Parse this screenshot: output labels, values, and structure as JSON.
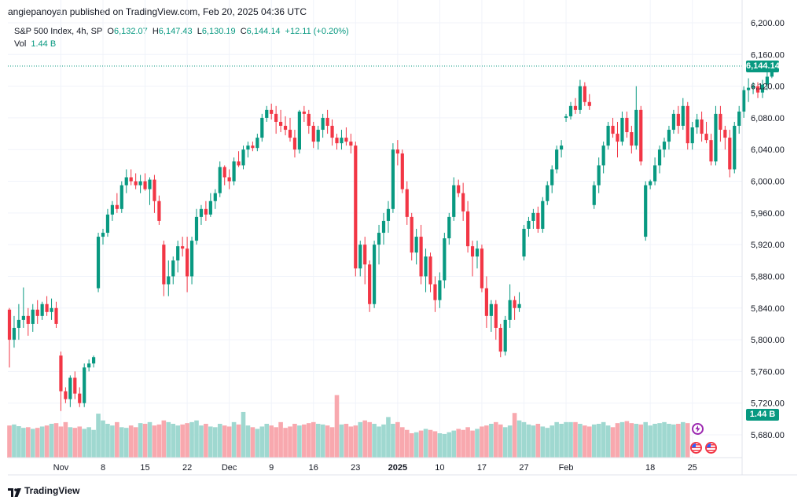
{
  "header": {
    "publish_line": "angiepanoyan published on TradingView.com, Feb 20, 2025 04:36 UTC"
  },
  "legend": {
    "symbol": "S&P 500 Index, 4h, SP",
    "o_label": "O",
    "o_value": "6,132.07",
    "h_label": "H",
    "h_value": "6,147.43",
    "l_label": "L",
    "l_value": "6,130.19",
    "c_label": "C",
    "c_value": "6,144.14",
    "change": "+12.11 (+0.20%)",
    "vol_label": "Vol",
    "vol_value": "1.44 B"
  },
  "price_tag": "6,144.14",
  "volume_tag": "1.44 B",
  "footer": {
    "brand": "TradingView"
  },
  "colors": {
    "up": "#089981",
    "down": "#f23645",
    "up_vol": "#9fd8d0",
    "down_vol": "#f8a8ae"
  },
  "chart_data": {
    "type": "candlestick",
    "title": "S&P 500 Index, 4h",
    "ylim": [
      5640,
      6210
    ],
    "y_ticks": [
      5680,
      5720,
      5760,
      5800,
      5840,
      5880,
      5920,
      5960,
      6000,
      6040,
      6080,
      6120,
      6160,
      6200
    ],
    "y_tick_labels": [
      "5,680.00",
      "5,720.00",
      "5,760.00",
      "5,800.00",
      "5,840.00",
      "5,880.00",
      "5,920.00",
      "5,960.00",
      "6,000.00",
      "6,040.00",
      "6,080.00",
      "6,120.00",
      "6,160.00",
      "6,200.00"
    ],
    "x_ticks": [
      {
        "label": "Nov",
        "i": 11
      },
      {
        "label": "8",
        "i": 20
      },
      {
        "label": "15",
        "i": 29
      },
      {
        "label": "22",
        "i": 38
      },
      {
        "label": "Dec",
        "i": 47
      },
      {
        "label": "9",
        "i": 56
      },
      {
        "label": "16",
        "i": 65
      },
      {
        "label": "23",
        "i": 74
      },
      {
        "label": "2025",
        "i": 83
      },
      {
        "label": "10",
        "i": 92
      },
      {
        "label": "17",
        "i": 101
      },
      {
        "label": "27",
        "i": 110
      },
      {
        "label": "Feb",
        "i": 119
      },
      {
        "label": "18",
        "i": 137
      },
      {
        "label": "25",
        "i": 146
      }
    ],
    "last_price": 6144.14,
    "ohlc": [
      [
        5838,
        5840,
        5765,
        5800
      ],
      [
        5800,
        5830,
        5790,
        5815
      ],
      [
        5815,
        5845,
        5800,
        5825
      ],
      [
        5825,
        5866,
        5815,
        5830
      ],
      [
        5830,
        5840,
        5805,
        5820
      ],
      [
        5820,
        5845,
        5810,
        5838
      ],
      [
        5838,
        5850,
        5820,
        5830
      ],
      [
        5830,
        5848,
        5825,
        5845
      ],
      [
        5845,
        5855,
        5830,
        5835
      ],
      [
        5835,
        5852,
        5825,
        5840
      ],
      [
        5840,
        5848,
        5815,
        5820
      ],
      [
        5780,
        5785,
        5710,
        5735
      ],
      [
        5735,
        5740,
        5720,
        5725
      ],
      [
        5725,
        5755,
        5715,
        5752
      ],
      [
        5752,
        5760,
        5725,
        5732
      ],
      [
        5732,
        5740,
        5715,
        5720
      ],
      [
        5720,
        5770,
        5715,
        5765
      ],
      [
        5765,
        5775,
        5760,
        5770
      ],
      [
        5770,
        5780,
        5765,
        5778
      ],
      [
        5865,
        5935,
        5860,
        5930
      ],
      [
        5930,
        5940,
        5920,
        5935
      ],
      [
        5935,
        5965,
        5930,
        5958
      ],
      [
        5958,
        5975,
        5950,
        5970
      ],
      [
        5970,
        5985,
        5960,
        5965
      ],
      [
        5965,
        6000,
        5960,
        5995
      ],
      [
        5995,
        6015,
        5985,
        6005
      ],
      [
        6005,
        6015,
        5995,
        6000
      ],
      [
        6000,
        6010,
        5990,
        5995
      ],
      [
        5995,
        6008,
        5985,
        6000
      ],
      [
        6000,
        6010,
        5988,
        5990
      ],
      [
        5990,
        6005,
        5970,
        6002
      ],
      [
        6002,
        6008,
        5960,
        5975
      ],
      [
        5975,
        5982,
        5945,
        5950
      ],
      [
        5920,
        5925,
        5855,
        5870
      ],
      [
        5870,
        5900,
        5855,
        5880
      ],
      [
        5880,
        5905,
        5870,
        5900
      ],
      [
        5900,
        5925,
        5885,
        5918
      ],
      [
        5918,
        5930,
        5905,
        5915
      ],
      [
        5915,
        5930,
        5860,
        5880
      ],
      [
        5880,
        5930,
        5870,
        5925
      ],
      [
        5925,
        5965,
        5920,
        5955
      ],
      [
        5955,
        5970,
        5945,
        5965
      ],
      [
        5965,
        5975,
        5950,
        5958
      ],
      [
        5958,
        5985,
        5955,
        5975
      ],
      [
        5975,
        5990,
        5965,
        5985
      ],
      [
        5985,
        6025,
        5980,
        6018
      ],
      [
        6018,
        6020,
        5995,
        6005
      ],
      [
        6005,
        6015,
        5990,
        6000
      ],
      [
        6000,
        6030,
        5995,
        6025
      ],
      [
        6025,
        6038,
        6018,
        6020
      ],
      [
        6020,
        6045,
        6015,
        6040
      ],
      [
        6040,
        6050,
        6030,
        6045
      ],
      [
        6045,
        6050,
        6038,
        6042
      ],
      [
        6042,
        6060,
        6038,
        6055
      ],
      [
        6055,
        6085,
        6050,
        6080
      ],
      [
        6080,
        6095,
        6075,
        6090
      ],
      [
        6090,
        6098,
        6078,
        6085
      ],
      [
        6085,
        6095,
        6060,
        6075
      ],
      [
        6075,
        6090,
        6062,
        6070
      ],
      [
        6070,
        6082,
        6058,
        6065
      ],
      [
        6065,
        6080,
        6050,
        6055
      ],
      [
        6055,
        6065,
        6030,
        6040
      ],
      [
        6040,
        6090,
        6035,
        6088
      ],
      [
        6088,
        6095,
        6075,
        6085
      ],
      [
        6085,
        6090,
        6060,
        6070
      ],
      [
        6070,
        6075,
        6042,
        6050
      ],
      [
        6050,
        6070,
        6040,
        6065
      ],
      [
        6065,
        6085,
        6055,
        6080
      ],
      [
        6080,
        6090,
        6060,
        6070
      ],
      [
        6070,
        6078,
        6045,
        6055
      ],
      [
        6055,
        6060,
        6040,
        6048
      ],
      [
        6048,
        6065,
        6040,
        6055
      ],
      [
        6055,
        6068,
        6045,
        6050
      ],
      [
        6050,
        6060,
        6035,
        6045
      ],
      [
        6045,
        6050,
        5880,
        5890
      ],
      [
        5890,
        5925,
        5880,
        5920
      ],
      [
        5920,
        5930,
        5870,
        5895
      ],
      [
        5895,
        5900,
        5835,
        5845
      ],
      [
        5845,
        5925,
        5840,
        5920
      ],
      [
        5920,
        5945,
        5895,
        5935
      ],
      [
        5935,
        5960,
        5920,
        5950
      ],
      [
        5950,
        5975,
        5935,
        5965
      ],
      [
        5965,
        6048,
        5960,
        6040
      ],
      [
        6040,
        6052,
        6020,
        6035
      ],
      [
        6035,
        6040,
        5985,
        5990
      ],
      [
        5990,
        6000,
        5945,
        5955
      ],
      [
        5955,
        5960,
        5900,
        5910
      ],
      [
        5910,
        5940,
        5895,
        5930
      ],
      [
        5930,
        5945,
        5870,
        5880
      ],
      [
        5880,
        5915,
        5860,
        5905
      ],
      [
        5905,
        5910,
        5860,
        5870
      ],
      [
        5870,
        5880,
        5835,
        5850
      ],
      [
        5850,
        5885,
        5840,
        5875
      ],
      [
        5875,
        5935,
        5865,
        5928
      ],
      [
        5928,
        5960,
        5920,
        5955
      ],
      [
        5955,
        6005,
        5950,
        5995
      ],
      [
        5995,
        6002,
        5980,
        5985
      ],
      [
        5985,
        5998,
        5950,
        5962
      ],
      [
        5962,
        5975,
        5910,
        5918
      ],
      [
        5918,
        5925,
        5880,
        5905
      ],
      [
        5905,
        5925,
        5890,
        5915
      ],
      [
        5915,
        5920,
        5860,
        5865
      ],
      [
        5865,
        5880,
        5815,
        5830
      ],
      [
        5830,
        5850,
        5810,
        5845
      ],
      [
        5845,
        5850,
        5800,
        5815
      ],
      [
        5815,
        5820,
        5778,
        5785
      ],
      [
        5785,
        5830,
        5780,
        5825
      ],
      [
        5825,
        5870,
        5815,
        5850
      ],
      [
        5850,
        5855,
        5825,
        5840
      ],
      [
        5840,
        5860,
        5835,
        5845
      ],
      [
        5905,
        5945,
        5900,
        5940
      ],
      [
        5940,
        5955,
        5930,
        5950
      ],
      [
        5950,
        5965,
        5940,
        5960
      ],
      [
        5960,
        5968,
        5935,
        5940
      ],
      [
        5940,
        5980,
        5935,
        5975
      ],
      [
        5975,
        6000,
        5970,
        5995
      ],
      [
        5995,
        6020,
        5985,
        6015
      ],
      [
        6015,
        6045,
        6010,
        6040
      ],
      [
        6040,
        6052,
        6030,
        6045
      ],
      [
        6080,
        6085,
        6075,
        6082
      ],
      [
        6082,
        6100,
        6078,
        6095
      ],
      [
        6095,
        6105,
        6085,
        6090
      ],
      [
        6090,
        6128,
        6085,
        6120
      ],
      [
        6120,
        6125,
        6095,
        6100
      ],
      [
        6100,
        6110,
        6090,
        6095
      ],
      [
        5970,
        6000,
        5965,
        5995
      ],
      [
        5995,
        6030,
        5985,
        6020
      ],
      [
        6020,
        6050,
        6010,
        6045
      ],
      [
        6045,
        6075,
        6040,
        6070
      ],
      [
        6070,
        6080,
        6055,
        6060
      ],
      [
        6060,
        6075,
        6030,
        6050
      ],
      [
        6050,
        6088,
        6045,
        6080
      ],
      [
        6080,
        6088,
        6055,
        6062
      ],
      [
        6062,
        6070,
        6035,
        6045
      ],
      [
        6045,
        6120,
        6040,
        6090
      ],
      [
        6090,
        6095,
        6020,
        6025
      ],
      [
        5930,
        6000,
        5925,
        5995
      ],
      [
        5995,
        6002,
        5990,
        6000
      ],
      [
        6000,
        6030,
        5995,
        6020
      ],
      [
        6020,
        6045,
        6010,
        6040
      ],
      [
        6040,
        6055,
        6030,
        6050
      ],
      [
        6050,
        6070,
        6040,
        6065
      ],
      [
        6065,
        6090,
        6060,
        6085
      ],
      [
        6085,
        6095,
        6060,
        6070
      ],
      [
        6070,
        6105,
        6065,
        6095
      ],
      [
        6095,
        6100,
        6040,
        6048
      ],
      [
        6048,
        6075,
        6040,
        6068
      ],
      [
        6068,
        6085,
        6060,
        6078
      ],
      [
        6078,
        6088,
        6050,
        6060
      ],
      [
        6060,
        6075,
        6048,
        6052
      ],
      [
        6052,
        6060,
        6020,
        6025
      ],
      [
        6025,
        6095,
        6020,
        6085
      ],
      [
        6085,
        6095,
        6050,
        6065
      ],
      [
        6065,
        6070,
        6040,
        6055
      ],
      [
        6055,
        6065,
        6005,
        6015
      ],
      [
        6015,
        6075,
        6010,
        6070
      ],
      [
        6070,
        6095,
        6060,
        6088
      ],
      [
        6088,
        6120,
        6080,
        6115
      ],
      [
        6115,
        6130,
        6100,
        6118
      ],
      [
        6118,
        6125,
        6110,
        6120
      ],
      [
        6120,
        6125,
        6105,
        6112
      ],
      [
        6112,
        6128,
        6105,
        6122
      ],
      [
        6122,
        6140,
        6115,
        6132
      ],
      [
        6132.07,
        6147.43,
        6130.19,
        6144.14
      ]
    ],
    "volume_scale": [
      0,
      2.0
    ],
    "volume": [
      0.95,
      0.98,
      0.93,
      0.88,
      0.9,
      0.85,
      0.88,
      0.92,
      0.95,
      1.0,
      1.02,
      0.92,
      1.05,
      0.9,
      0.88,
      0.92,
      0.85,
      0.9,
      0.82,
      1.3,
      1.1,
      1.0,
      0.95,
      1.05,
      0.9,
      0.88,
      0.95,
      0.9,
      1.02,
      1.0,
      1.05,
      0.95,
      0.98,
      1.1,
      1.05,
      1.0,
      0.95,
      0.98,
      1.02,
      1.05,
      1.1,
      0.95,
      1.0,
      0.92,
      0.9,
      1.0,
      0.95,
      0.92,
      1.05,
      0.98,
      1.35,
      0.95,
      0.9,
      0.85,
      0.92,
      1.0,
      0.95,
      0.9,
      1.05,
      0.88,
      0.92,
      1.0,
      0.95,
      0.98,
      1.02,
      1.05,
      1.0,
      0.98,
      0.95,
      0.9,
      0.95,
      0.98,
      1.0,
      0.92,
      0.95,
      1.05,
      1.1,
      1.05,
      1.0,
      0.92,
      0.98,
      1.2,
      1.0,
      1.05,
      0.9,
      0.82,
      0.72,
      0.75,
      0.8,
      0.85,
      0.82,
      0.78,
      0.72,
      0.7,
      0.75,
      0.8,
      0.85,
      0.82,
      0.9,
      0.8,
      0.85,
      0.92,
      0.95,
      1.0,
      1.05,
      0.98,
      0.9,
      0.95,
      1.0,
      1.1,
      1.05,
      0.98,
      0.95,
      1.0,
      0.92,
      0.88,
      0.95,
      1.05,
      1.0,
      0.98,
      1.02,
      1.05,
      1.0,
      0.95,
      0.92,
      0.98,
      1.0,
      1.05,
      0.95,
      0.9,
      1.02,
      1.05,
      1.08,
      1.02,
      1.0,
      0.98,
      1.05,
      0.95,
      1.0,
      1.02,
      1.05,
      1.0,
      0.98,
      1.0,
      1.05,
      1.02
    ],
    "volume_highlights": [
      [
        70,
        1.85
      ],
      [
        108,
        1.32
      ],
      [
        119,
        1.05
      ],
      [
        120,
        1.05
      ]
    ]
  }
}
